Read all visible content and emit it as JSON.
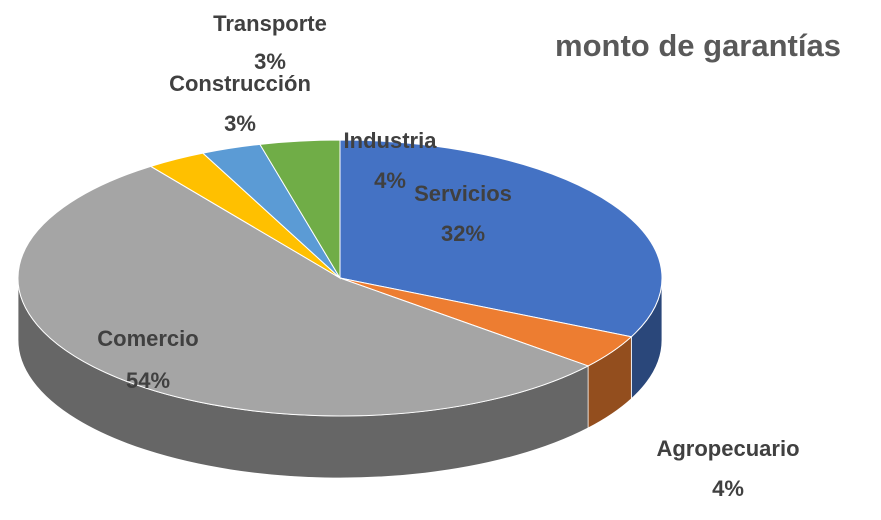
{
  "chart_data": {
    "type": "pie",
    "title": "monto de garantías",
    "categories": [
      "Servicios",
      "Agropecuario",
      "Comercio",
      "Construcción",
      "Transporte",
      "Industria"
    ],
    "values": [
      32,
      4,
      54,
      3,
      3,
      4
    ],
    "value_labels": [
      "32%",
      "4%",
      "54%",
      "3%",
      "3%",
      "4%"
    ],
    "colors": [
      "#4472c4",
      "#ed7d31",
      "#a5a5a5",
      "#ffc000",
      "#5b9bd5",
      "#70ad47"
    ]
  }
}
